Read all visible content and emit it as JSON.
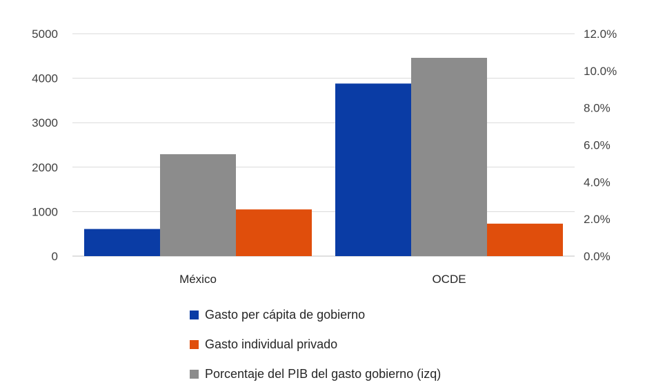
{
  "chart_data": {
    "type": "bar",
    "categories": [
      "México",
      "OCDE"
    ],
    "series": [
      {
        "name": "Gasto per cápita de gobierno",
        "axis": "left",
        "values": [
          610,
          3880
        ],
        "color": "#0a3ca5"
      },
      {
        "name": "Porcentaje del PIB del gasto gobierno (izq)",
        "axis": "right",
        "values": [
          5.5,
          10.7
        ],
        "color": "#8c8c8c"
      },
      {
        "name": "Gasto individual privado",
        "axis": "left",
        "values": [
          1050,
          730
        ],
        "color": "#e04e0c"
      }
    ],
    "y_left": {
      "ylim": [
        0,
        5000
      ],
      "ticks": [
        "0",
        "1000",
        "2000",
        "3000",
        "4000",
        "5000"
      ]
    },
    "y_right": {
      "ylim": [
        0,
        12
      ],
      "ticks": [
        "0.0%",
        "2.0%",
        "4.0%",
        "6.0%",
        "8.0%",
        "10.0%",
        "12.0%"
      ]
    },
    "grid": true,
    "legend": {
      "placement": "bottom",
      "items": [
        {
          "label": "Gasto per cápita de gobierno",
          "color": "#0a3ca5"
        },
        {
          "label": "Gasto individual privado",
          "color": "#e04e0c"
        },
        {
          "label": "Porcentaje del PIB del gasto gobierno (izq)",
          "color": "#8c8c8c"
        }
      ]
    }
  }
}
